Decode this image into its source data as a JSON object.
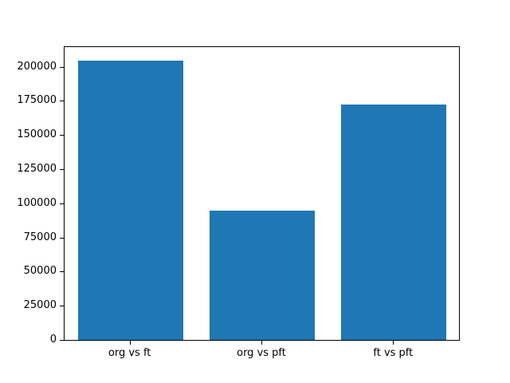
{
  "chart_data": {
    "type": "bar",
    "categories": [
      "org vs ft",
      "org vs pft",
      "ft vs pft"
    ],
    "values": [
      205000,
      95000,
      173000
    ],
    "title": "",
    "xlabel": "",
    "ylabel": "",
    "ylim": [
      0,
      215000
    ],
    "yticks": [
      0,
      25000,
      50000,
      75000,
      100000,
      125000,
      150000,
      175000,
      200000
    ],
    "bar_width_fraction": 0.8,
    "grid": false,
    "legend": "none"
  },
  "colors": {
    "background": "#ffffff",
    "bar": "#1f77b4",
    "spine": "#000000",
    "tick_text": "#000000"
  }
}
